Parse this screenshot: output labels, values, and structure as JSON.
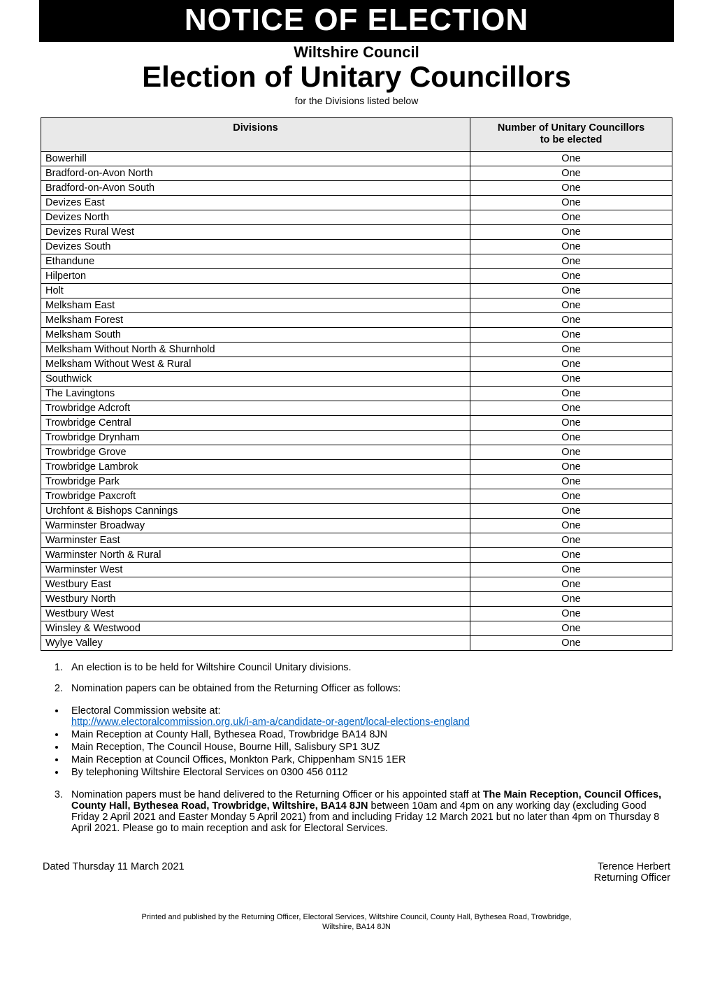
{
  "banner": "NOTICE OF ELECTION",
  "council": "Wiltshire Council",
  "title": "Election of Unitary Councillors",
  "subtitle": "for the Divisions listed below",
  "table": {
    "col1": "Divisions",
    "col2_line1": "Number of Unitary Councillors",
    "col2_line2": "to be elected",
    "rows": [
      {
        "name": "Bowerhill",
        "count": "One"
      },
      {
        "name": "Bradford-on-Avon North",
        "count": "One"
      },
      {
        "name": "Bradford-on-Avon South",
        "count": "One"
      },
      {
        "name": "Devizes East",
        "count": "One"
      },
      {
        "name": "Devizes North",
        "count": "One"
      },
      {
        "name": "Devizes Rural West",
        "count": "One"
      },
      {
        "name": "Devizes South",
        "count": "One"
      },
      {
        "name": "Ethandune",
        "count": "One"
      },
      {
        "name": "Hilperton",
        "count": "One"
      },
      {
        "name": "Holt",
        "count": "One"
      },
      {
        "name": "Melksham East",
        "count": "One"
      },
      {
        "name": "Melksham Forest",
        "count": "One"
      },
      {
        "name": "Melksham South",
        "count": "One"
      },
      {
        "name": "Melksham Without North & Shurnhold",
        "count": "One"
      },
      {
        "name": "Melksham Without West & Rural",
        "count": "One"
      },
      {
        "name": "Southwick",
        "count": "One"
      },
      {
        "name": "The Lavingtons",
        "count": "One"
      },
      {
        "name": "Trowbridge Adcroft",
        "count": "One"
      },
      {
        "name": "Trowbridge Central",
        "count": "One"
      },
      {
        "name": "Trowbridge Drynham",
        "count": "One"
      },
      {
        "name": "Trowbridge Grove",
        "count": "One"
      },
      {
        "name": "Trowbridge Lambrok",
        "count": "One"
      },
      {
        "name": "Trowbridge Park",
        "count": "One"
      },
      {
        "name": "Trowbridge Paxcroft",
        "count": "One"
      },
      {
        "name": "Urchfont & Bishops Cannings",
        "count": "One"
      },
      {
        "name": "Warminster Broadway",
        "count": "One"
      },
      {
        "name": "Warminster East",
        "count": "One"
      },
      {
        "name": "Warminster North & Rural",
        "count": "One"
      },
      {
        "name": "Warminster West",
        "count": "One"
      },
      {
        "name": "Westbury East",
        "count": "One"
      },
      {
        "name": "Westbury North",
        "count": "One"
      },
      {
        "name": "Westbury West",
        "count": "One"
      },
      {
        "name": "Winsley & Westwood",
        "count": "One"
      },
      {
        "name": "Wylye Valley",
        "count": "One"
      }
    ]
  },
  "point1": "An election is to be held for Wiltshire Council Unitary divisions.",
  "point2": "Nomination papers can be obtained from the Returning Officer as follows:",
  "bullets": {
    "b1a": "Electoral Commission website at:",
    "b1_link": "http://www.electoralcommission.org.uk/i-am-a/candidate-or-agent/local-elections-england",
    "b2": " Main Reception at County Hall, Bythesea Road, Trowbridge BA14 8JN",
    "b3": "Main Reception, The Council House, Bourne Hill, Salisbury SP1 3UZ",
    "b4": "Main Reception at Council Offices, Monkton Park, Chippenham SN15 1ER",
    "b5": "By telephoning Wiltshire Electoral Services on 0300 456 0112"
  },
  "point3_pre": "Nomination papers must be hand delivered to the Returning Officer or his appointed staff at ",
  "point3_bold": "The Main Reception, Council Offices, County Hall, Bythesea Road, Trowbridge, Wiltshire, BA14 8JN",
  "point3_post": " between 10am and 4pm on any working day (excluding Good Friday 2 April 2021 and Easter Monday 5 April 2021) from and including Friday 12 March 2021 but no later than 4pm on Thursday 8 April 2021.  Please go to main reception and ask for Electoral Services.",
  "dated": "Dated Thursday 11 March 2021",
  "signer_name": "Terence Herbert",
  "signer_role": "Returning Officer",
  "footer_line1": "Printed and published by the Returning Officer, Electoral Services, Wiltshire Council, County Hall, Bythesea Road, Trowbridge,",
  "footer_line2": "Wiltshire, BA14 8JN",
  "colors": {
    "banner_bg": "#000000",
    "banner_fg": "#ffffff",
    "header_row_bg": "#e9e9e9",
    "link": "#0563c1",
    "page_bg": "#ffffff",
    "text": "#000000"
  },
  "fonts": {
    "body_pt": 11,
    "banner_pt": 34,
    "title_pt": 32,
    "council_pt": 17
  }
}
